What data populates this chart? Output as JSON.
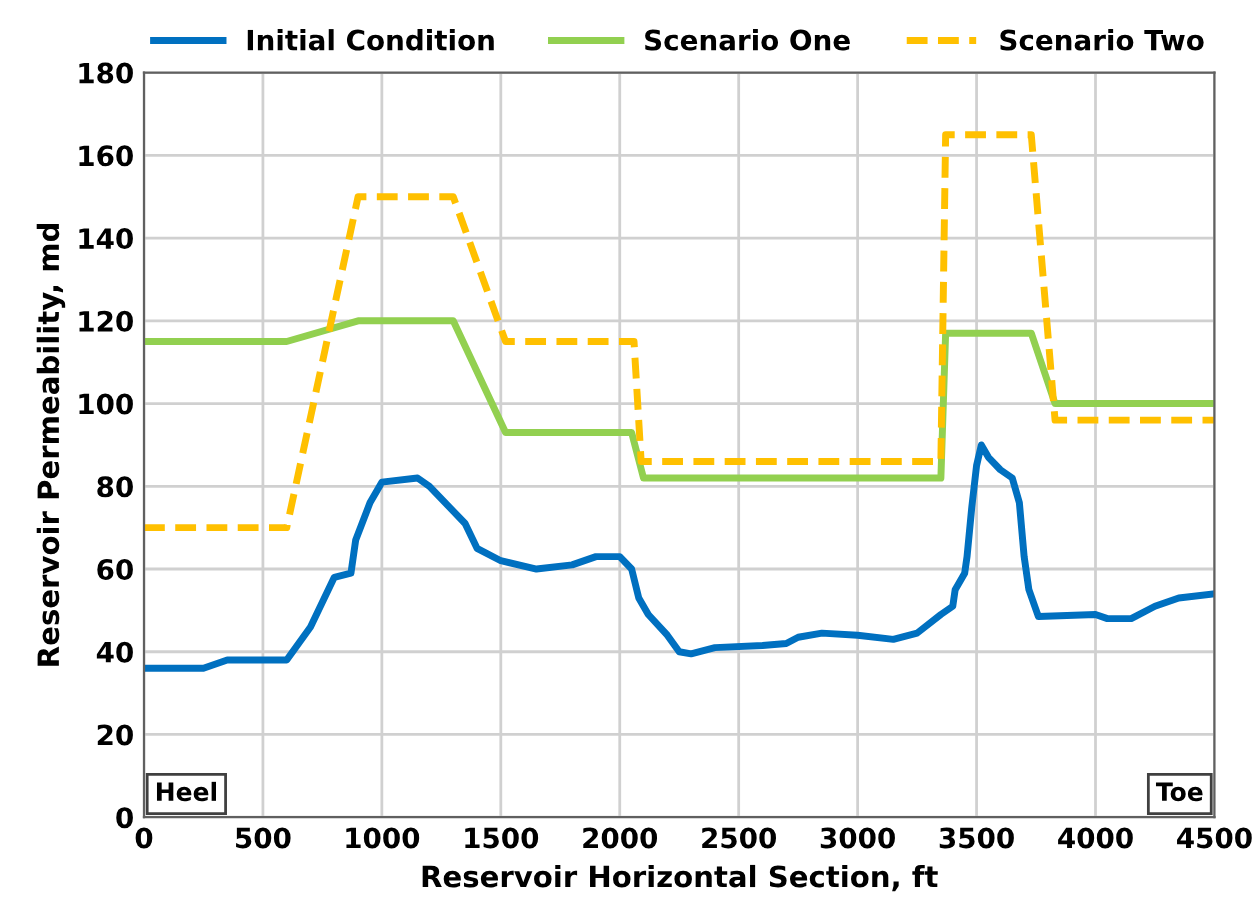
{
  "chart_data": {
    "type": "line",
    "xlabel": "Reservoir Horizontal Section, ft",
    "ylabel": "Reservoir Permeability, md",
    "xlim": [
      0,
      4500
    ],
    "xticks": [
      0,
      500,
      1000,
      1500,
      2000,
      2500,
      3000,
      3500,
      4000,
      4500
    ],
    "ylim": [
      0,
      180
    ],
    "yticks": [
      0,
      20,
      40,
      60,
      80,
      100,
      120,
      140,
      160,
      180
    ],
    "grid": true,
    "legend": "top",
    "marker": "none",
    "annotations": [
      "Heel",
      "Toe"
    ],
    "series": [
      {
        "name": "Initial Condition",
        "color": "#0070c0",
        "line_style": "solid",
        "x": [
          0,
          250,
          350,
          500,
          600,
          700,
          800,
          870,
          890,
          950,
          1000,
          1150,
          1200,
          1300,
          1350,
          1400,
          1500,
          1650,
          1800,
          1900,
          2000,
          2050,
          2080,
          2120,
          2200,
          2250,
          2300,
          2400,
          2600,
          2700,
          2750,
          2850,
          3000,
          3150,
          3250,
          3350,
          3400,
          3410,
          3450,
          3460,
          3480,
          3500,
          3520,
          3550,
          3600,
          3650,
          3680,
          3700,
          3720,
          3760,
          4000,
          4050,
          4150,
          4250,
          4350,
          4500
        ],
        "values": [
          36,
          36,
          38,
          38,
          38,
          46,
          58,
          59,
          67,
          76,
          81,
          82,
          80,
          74,
          71,
          65,
          62,
          60,
          61,
          63,
          63,
          60,
          53,
          49,
          44,
          40,
          39.5,
          41,
          41.5,
          42,
          43.5,
          44.5,
          44,
          43,
          44.5,
          49,
          51,
          55,
          59,
          63,
          75,
          85,
          90,
          87,
          84,
          82,
          76,
          63,
          55,
          48.5,
          49,
          48,
          48,
          51,
          53,
          54
        ]
      },
      {
        "name": "Scenario One",
        "color": "#92d050",
        "line_style": "solid",
        "x": [
          0,
          600,
          900,
          1300,
          1520,
          2050,
          2100,
          3350,
          3370,
          3730,
          3830,
          4500
        ],
        "values": [
          115,
          115,
          120,
          120,
          93,
          93,
          82,
          82,
          117,
          117,
          100,
          100
        ]
      },
      {
        "name": "Scenario Two",
        "color": "#ffc000",
        "line_style": "dashed",
        "x": [
          0,
          600,
          900,
          1300,
          1520,
          2060,
          2090,
          3350,
          3370,
          3730,
          3830,
          4500
        ],
        "values": [
          70,
          70,
          150,
          150,
          115,
          115,
          86,
          86,
          165,
          165,
          96,
          96
        ]
      }
    ]
  }
}
